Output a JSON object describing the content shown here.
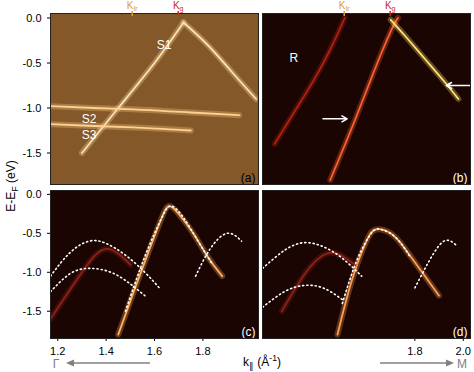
{
  "figure": {
    "ylabel": [
      {
        "text": "E-E"
      },
      {
        "text": "F",
        "sub": true
      },
      {
        "text": " (eV)"
      }
    ],
    "xlabel": [
      {
        "text": "k"
      },
      {
        "text": "∥",
        "sub": true
      },
      {
        "text": " (Å"
      },
      {
        "text": "-1",
        "sup": true
      },
      {
        "text": ")"
      }
    ],
    "direction_left": "Γ",
    "direction_right": "M"
  },
  "chart_data": [
    {
      "type": "line",
      "title": "(a)",
      "color": "#f0a048",
      "xlim": [
        1.17,
        2.03
      ],
      "ylim": [
        -1.85,
        0.05
      ],
      "yticks": [
        {
          "value": 0,
          "label": "0.0"
        },
        -0.5,
        {
          "value": -1,
          "label": "-1.0"
        },
        -1.5
      ],
      "tick_labels": "y",
      "markers": [
        {
          "text": "K",
          "sub": "Ir",
          "x": 1.51,
          "color": "#d8a030"
        },
        {
          "text": "K",
          "sub": "g",
          "x": 1.7,
          "color": "#c8282a"
        }
      ],
      "annotations": [
        {
          "text": "S1",
          "x": 1.64,
          "y": -0.3
        },
        {
          "text": "S2",
          "x": 1.33,
          "y": -1.12
        },
        {
          "text": "S3",
          "x": 1.33,
          "y": -1.3
        }
      ],
      "series": [
        {
          "x": [
            1.3,
            1.45,
            1.6,
            1.72
          ],
          "values": [
            -1.5,
            -1.0,
            -0.5,
            -0.05
          ],
          "color": "#ffe0b0",
          "line_style": "solid"
        },
        {
          "x": [
            1.72,
            1.82,
            1.92,
            2.02
          ],
          "values": [
            -0.05,
            -0.3,
            -0.6,
            -0.9
          ],
          "color": "#ffe0b0",
          "line_style": "solid"
        },
        {
          "x": [
            1.17,
            1.35,
            1.55,
            1.75,
            1.95
          ],
          "values": [
            -0.98,
            -1.0,
            -1.02,
            -1.05,
            -1.08
          ],
          "color": "#ffd090",
          "line_style": "solid"
        },
        {
          "x": [
            1.17,
            1.35,
            1.55,
            1.75
          ],
          "values": [
            -1.18,
            -1.2,
            -1.22,
            -1.25
          ],
          "color": "#ffd090",
          "line_style": "solid"
        }
      ]
    },
    {
      "type": "line",
      "title": "(b)",
      "color": "#ff3018",
      "xlim": [
        1.17,
        2.03
      ],
      "ylim": [
        -1.85,
        0.05
      ],
      "tick_labels": false,
      "markers": [
        {
          "text": "K",
          "sub": "Ir",
          "x": 1.51,
          "color": "#d8a030"
        },
        {
          "text": "K",
          "sub": "g",
          "x": 1.7,
          "color": "#c8282a"
        }
      ],
      "annotations": [
        {
          "text": "R",
          "x": 1.3,
          "y": -0.45
        }
      ],
      "arrows": [
        {
          "x": 1.52,
          "y": -1.12,
          "direction": "right"
        },
        {
          "x": 1.93,
          "y": -0.75,
          "direction": "left"
        }
      ],
      "series": [
        {
          "x": [
            1.45,
            1.55,
            1.63,
            1.7,
            1.73
          ],
          "values": [
            -1.8,
            -1.15,
            -0.6,
            -0.15,
            0.0
          ],
          "color": "#ff6030",
          "line_style": "solid"
        },
        {
          "x": [
            1.7,
            1.76,
            1.84,
            1.92,
            1.98
          ],
          "values": [
            -0.02,
            -0.2,
            -0.45,
            -0.7,
            -0.9
          ],
          "color": "#ffe070",
          "line_style": "solid"
        },
        {
          "x": [
            1.51,
            1.45,
            1.38,
            1.3,
            1.22
          ],
          "values": [
            0.0,
            -0.35,
            -0.7,
            -1.05,
            -1.4
          ],
          "color": "#b02010",
          "line_style": "solid"
        }
      ]
    },
    {
      "type": "line",
      "title": "(c)",
      "color": "#ff3018",
      "xlim": [
        1.17,
        2.03
      ],
      "ylim": [
        -1.85,
        0.05
      ],
      "xticks": [
        1.2,
        1.4,
        1.6,
        1.8
      ],
      "yticks": [
        {
          "value": 0,
          "label": "0.0"
        },
        -0.5,
        {
          "value": -1,
          "label": "-1.0"
        },
        -1.5
      ],
      "tick_labels": true,
      "series": [
        {
          "x": [
            1.45,
            1.52,
            1.58,
            1.63,
            1.66,
            1.7,
            1.76,
            1.82,
            1.88
          ],
          "values": [
            -1.8,
            -1.2,
            -0.7,
            -0.3,
            -0.15,
            -0.25,
            -0.5,
            -0.8,
            -1.05
          ],
          "color": "#ffb060",
          "line_style": "solid"
        },
        {
          "x": [
            1.17,
            1.3,
            1.4,
            1.5
          ],
          "values": [
            -1.6,
            -1.0,
            -0.7,
            -0.9
          ],
          "color": "#902018",
          "line_style": "solid"
        },
        {
          "x": [
            1.17,
            1.25,
            1.33,
            1.4,
            1.48,
            1.56,
            1.62
          ],
          "values": [
            -1.05,
            -0.75,
            -0.6,
            -0.63,
            -0.78,
            -1.0,
            -1.2
          ],
          "color": "#ffffff",
          "line_style": "dotted"
        },
        {
          "x": [
            1.17,
            1.25,
            1.33,
            1.42,
            1.5,
            1.56
          ],
          "values": [
            -1.25,
            -1.02,
            -0.95,
            -1.0,
            -1.15,
            -1.3
          ],
          "color": "#ffffff",
          "line_style": "dotted"
        },
        {
          "x": [
            1.48,
            1.56,
            1.63,
            1.67,
            1.72,
            1.78,
            1.84
          ],
          "values": [
            -1.5,
            -0.8,
            -0.3,
            -0.15,
            -0.3,
            -0.6,
            -0.9
          ],
          "color": "#ffffff",
          "line_style": "dotted"
        },
        {
          "x": [
            1.77,
            1.83,
            1.9,
            1.96
          ],
          "values": [
            -1.05,
            -0.7,
            -0.5,
            -0.6
          ],
          "color": "#ffffff",
          "line_style": "dotted"
        }
      ]
    },
    {
      "type": "line",
      "title": "(d)",
      "color": "#ff3018",
      "xlim": [
        1.17,
        2.03
      ],
      "ylim": [
        -1.85,
        0.05
      ],
      "xticks": [
        1.8,
        {
          "value": 2,
          "label": "2.0"
        }
      ],
      "tick_labels": "x",
      "series": [
        {
          "x": [
            1.48,
            1.54,
            1.6,
            1.64,
            1.7,
            1.76,
            1.83,
            1.9
          ],
          "values": [
            -1.8,
            -1.1,
            -0.6,
            -0.45,
            -0.5,
            -0.7,
            -1.0,
            -1.3
          ],
          "color": "#ffa050",
          "line_style": "solid"
        },
        {
          "x": [
            1.25,
            1.35,
            1.45,
            1.55
          ],
          "values": [
            -1.5,
            -1.0,
            -0.75,
            -0.9
          ],
          "color": "#902018",
          "line_style": "solid"
        },
        {
          "x": [
            1.17,
            1.26,
            1.34,
            1.42,
            1.5,
            1.58
          ],
          "values": [
            -0.95,
            -0.72,
            -0.62,
            -0.67,
            -0.82,
            -1.05
          ],
          "color": "#ffffff",
          "line_style": "dotted"
        },
        {
          "x": [
            1.17,
            1.26,
            1.34,
            1.42,
            1.5
          ],
          "values": [
            -1.45,
            -1.25,
            -1.17,
            -1.2,
            -1.35
          ],
          "color": "#ffffff",
          "line_style": "dotted"
        },
        {
          "x": [
            1.5,
            1.56,
            1.62,
            1.66,
            1.72,
            1.78
          ],
          "values": [
            -1.4,
            -0.85,
            -0.5,
            -0.45,
            -0.55,
            -0.8
          ],
          "color": "#ffffff",
          "line_style": "dotted"
        },
        {
          "x": [
            1.8,
            1.86,
            1.92,
            1.97
          ],
          "values": [
            -1.2,
            -0.85,
            -0.6,
            -0.65
          ],
          "color": "#ffffff",
          "line_style": "dotted"
        }
      ]
    }
  ]
}
